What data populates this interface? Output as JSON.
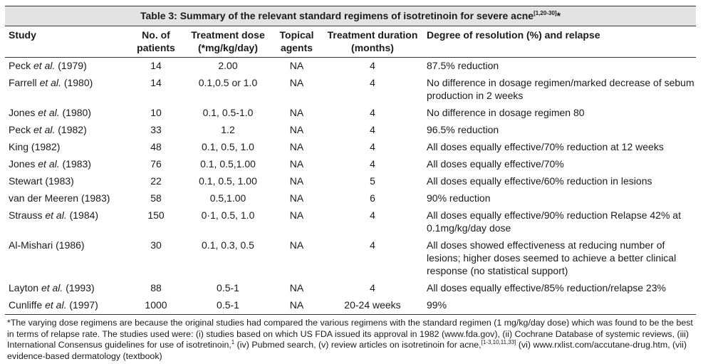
{
  "title": {
    "text": "Table 3: Summary of the relevant standard regimens of isotretinoin for severe acne",
    "refs": "[1,20-30]",
    "star": "*"
  },
  "headers": {
    "study": "Study",
    "patients_1": "No. of",
    "patients_2": "patients",
    "dose_1": "Treatment dose",
    "dose_2": "(*mg/kg/day)",
    "topical_1": "Topical",
    "topical_2": "agents",
    "duration_1": "Treatment duration",
    "duration_2": "(months)",
    "result": "Degree of resolution (%) and relapse"
  },
  "rows": [
    {
      "author": "Peck",
      "et": "et al.",
      "year": "(1979)",
      "patients": "14",
      "dose": "2.00",
      "topical": "NA",
      "duration": "4",
      "result": "87.5% reduction"
    },
    {
      "author": "Farrell",
      "et": "et al.",
      "year": "(1980)",
      "patients": "14",
      "dose": "0.1,0.5 or 1.0",
      "topical": "NA",
      "duration": "4",
      "result": "No difference in dosage regimen/marked decrease of sebum production in 2 weeks"
    },
    {
      "author": "Jones",
      "et": "et al.",
      "year": "(1980)",
      "patients": "10",
      "dose": "0.1, 0.5-1.0",
      "topical": "NA",
      "duration": "4",
      "result": "No difference in dosage regimen 80"
    },
    {
      "author": "Peck",
      "et": "et al.",
      "year": "(1982)",
      "patients": "33",
      "dose": "1.2",
      "topical": "NA",
      "duration": "4",
      "result": "96.5% reduction"
    },
    {
      "author": "King (1982)",
      "et": "",
      "year": "",
      "patients": "48",
      "dose": "0.1, 0.5, 1.0",
      "topical": "NA",
      "duration": "4",
      "result": "All doses equally effective/70% reduction at 12 weeks"
    },
    {
      "author": "Jones",
      "et": "et al.",
      "year": "(1983)",
      "patients": "76",
      "dose": "0.1, 0.5,1.00",
      "topical": "NA",
      "duration": "4",
      "result": "All doses equally effective/70%"
    },
    {
      "author": "Stewart (1983)",
      "et": "",
      "year": "",
      "patients": "22",
      "dose": "0.1, 0.5, 1.00",
      "topical": "NA",
      "duration": "5",
      "result": "All doses equally effective/60% reduction in lesions"
    },
    {
      "author": "van der Meeren (1983)",
      "et": "",
      "year": "",
      "patients": "58",
      "dose": "0.5,1.00",
      "topical": "NA",
      "duration": "6",
      "result": "90% reduction"
    },
    {
      "author": "Strauss",
      "et": "et al.",
      "year": "(1984)",
      "patients": "150",
      "dose": "0·1, 0.5, 1.0",
      "topical": "NA",
      "duration": "4",
      "result": "All doses equally effective/90% reduction Relapse 42% at 0.1mg/kg/day dose"
    },
    {
      "author": "Al-Mishari (1986)",
      "et": "",
      "year": "",
      "patients": "30",
      "dose": "0.1, 0.3, 0.5",
      "topical": "NA",
      "duration": "4",
      "result": "All doses showed effectiveness at reducing number of lesions; higher doses seemed to achieve a better clinical response (no statistical support)"
    },
    {
      "author": "Layton",
      "et": "et al.",
      "year": "(1993)",
      "patients": "88",
      "dose": "0.5-1",
      "topical": "NA",
      "duration": "4",
      "result": "All doses equally effective/85% reduction/relapse 23%"
    },
    {
      "author": "Cunliffe",
      "et": "et al.",
      "year": "(1997)",
      "patients": "1000",
      "dose": "0.5-1",
      "topical": "NA",
      "duration": "20-24 weeks",
      "result": "99%"
    }
  ],
  "footnote": {
    "part1": "*The varying dose regimens are because the original  studies had compared the various regimens with the standard regimen (1 mg/kg/day dose) which was found to be  the best in terms of relapse rate. The studies used were: (i) studies based on which US FDA issued its approval in 1982 (www.fda.gov), (ii) Cochrane Database of systemic reviews, (iii) International Consensus guidelines for use of isotretinoin,",
    "sup1": "1",
    "part2": " (iv) Pubmed search, (v) review articles on isotretinoin for acne,",
    "sup2": "[1-3,10,11,33]",
    "part3": " (vi) www.rxlist.com/accutane-drug.htm, (vii) evidence-based dermatology (textbook)"
  }
}
